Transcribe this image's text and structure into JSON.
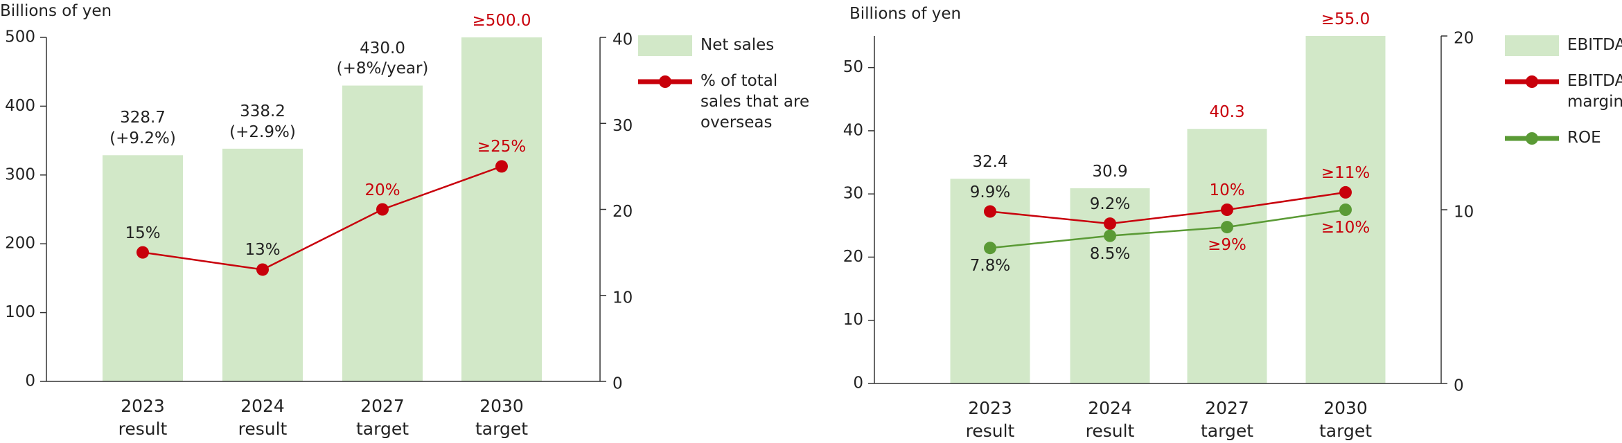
{
  "charts": [
    {
      "chart_data": {
        "type": "bar",
        "y_label": "Billions of yen",
        "categories": [
          "2023 result",
          "2024 result",
          "2027 target",
          "2030 target"
        ],
        "ylim": [
          0,
          500
        ],
        "yticks": [
          0,
          100,
          200,
          300,
          400,
          500
        ],
        "y2lim": [
          0,
          40
        ],
        "y2ticks": [
          0,
          10,
          20,
          30,
          40
        ],
        "series": [
          {
            "name": "Net sales",
            "type": "bar",
            "color": "#d2e8c8",
            "values": [
              328.7,
              338.2,
              430.0,
              500.0
            ],
            "value_labels": [
              "328.7 (+9.2%)",
              "338.2 (+2.9%)",
              "430.0 (+8%/year)",
              "≥500.0"
            ],
            "value_label_colors": [
              "#222222",
              "#222222",
              "#222222",
              "#c8000b"
            ]
          },
          {
            "name": "% of total sales that are overseas",
            "type": "line",
            "axis": "y2",
            "color": "#c8000b",
            "values": [
              15,
              13,
              20,
              25
            ],
            "value_labels": [
              "15%",
              "13%",
              "20%",
              "≥25%"
            ],
            "value_label_colors": [
              "#222222",
              "#222222",
              "#c8000b",
              "#c8000b"
            ]
          }
        ]
      }
    },
    {
      "chart_data": {
        "type": "bar",
        "y_label": "Billions of yen",
        "categories": [
          "2023 result",
          "2024 result",
          "2027 target",
          "2030 target"
        ],
        "ylim": [
          0,
          55
        ],
        "yticks": [
          0,
          10,
          20,
          30,
          40,
          50
        ],
        "y2lim": [
          0,
          20
        ],
        "y2ticks": [
          0,
          10,
          20
        ],
        "series": [
          {
            "name": "EBITDA",
            "type": "bar",
            "color": "#d2e8c8",
            "values": [
              32.4,
              30.9,
              40.3,
              55.0
            ],
            "value_labels": [
              "32.4",
              "30.9",
              "40.3",
              "≥55.0"
            ],
            "value_label_colors": [
              "#222222",
              "#222222",
              "#c8000b",
              "#c8000b"
            ]
          },
          {
            "name": "EBITDA margin",
            "type": "line",
            "axis": "y2",
            "color": "#c8000b",
            "values": [
              9.9,
              9.2,
              10,
              11
            ],
            "value_labels": [
              "9.9%",
              "9.2%",
              "10%",
              "≥11%"
            ],
            "value_label_colors": [
              "#222222",
              "#222222",
              "#c8000b",
              "#c8000b"
            ]
          },
          {
            "name": "ROE",
            "type": "line",
            "axis": "y2",
            "color": "#5a9a35",
            "values": [
              7.8,
              8.5,
              9,
              10
            ],
            "value_labels": [
              "7.8%",
              "8.5%",
              "≥9%",
              "≥10%"
            ],
            "value_label_colors": [
              "#222222",
              "#222222",
              "#c8000b",
              "#c8000b"
            ]
          }
        ]
      }
    }
  ]
}
